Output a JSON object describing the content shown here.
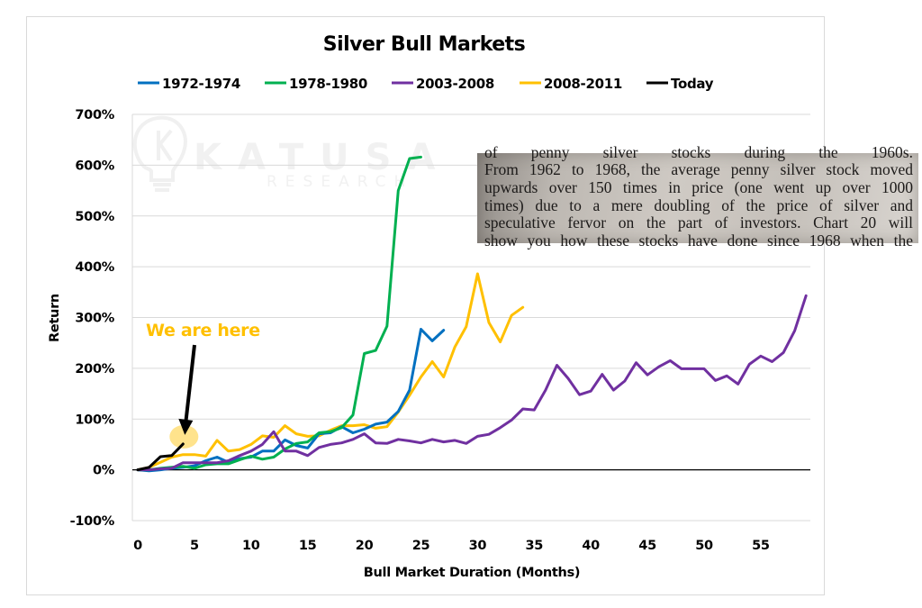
{
  "chart_data": {
    "type": "line",
    "title": "Silver Bull Markets",
    "xlabel": "Bull Market Duration (Months)",
    "ylabel": "Return",
    "xlim": [
      0,
      60
    ],
    "ylim": [
      -100,
      700
    ],
    "x_ticks": [
      0,
      5,
      10,
      15,
      20,
      25,
      30,
      35,
      40,
      45,
      50,
      55
    ],
    "x_tick_labels": [
      "0",
      "5",
      "10",
      "15",
      "20",
      "25",
      "30",
      "35",
      "40",
      "45",
      "50",
      "55"
    ],
    "y_ticks": [
      -100,
      0,
      100,
      200,
      300,
      400,
      500,
      600,
      700
    ],
    "y_tick_labels": [
      "-100%",
      "0%",
      "100%",
      "200%",
      "300%",
      "400%",
      "500%",
      "600%",
      "700%"
    ],
    "grid": "horizontal",
    "legend_position": "top",
    "series": [
      {
        "name": "1972-1974",
        "color": "#0070c0",
        "values": [
          0,
          -2,
          0,
          3,
          5,
          8,
          18,
          25,
          15,
          22,
          25,
          37,
          37,
          59,
          48,
          43,
          71,
          73,
          85,
          73,
          80,
          90,
          94,
          115,
          157,
          277,
          254,
          275
        ]
      },
      {
        "name": "1978-1980",
        "color": "#00b050",
        "values": [
          0,
          0,
          3,
          5,
          7,
          3,
          10,
          12,
          12,
          20,
          27,
          21,
          25,
          41,
          52,
          55,
          73,
          75,
          83,
          108,
          229,
          235,
          283,
          550,
          613,
          616
        ]
      },
      {
        "name": "2003-2008",
        "color": "#7030a0",
        "values": [
          0,
          0,
          2,
          3,
          14,
          14,
          14,
          14,
          18,
          28,
          37,
          50,
          75,
          37,
          37,
          28,
          44,
          50,
          53,
          60,
          71,
          53,
          52,
          60,
          57,
          53,
          60,
          55,
          58,
          52,
          66,
          70,
          83,
          98,
          120,
          118,
          157,
          206,
          180,
          148,
          155,
          188,
          157,
          175,
          211,
          187,
          203,
          215,
          199,
          199,
          199,
          176,
          185,
          169,
          208,
          224,
          213,
          231,
          274,
          343
        ]
      },
      {
        "name": "2008-2011",
        "color": "#ffc000",
        "values": [
          0,
          5,
          15,
          25,
          30,
          30,
          27,
          58,
          37,
          40,
          50,
          67,
          64,
          87,
          71,
          66,
          67,
          78,
          87,
          87,
          89,
          82,
          85,
          114,
          147,
          183,
          213,
          183,
          242,
          282,
          386,
          290,
          252,
          304,
          320
        ]
      },
      {
        "name": "Today",
        "color": "#000000",
        "values": [
          0,
          5,
          26,
          28,
          51
        ]
      }
    ],
    "annotations": [
      {
        "text": "We are here",
        "color": "#ffc000",
        "points_to": {
          "x": 4,
          "y": 51
        },
        "highlight_color": "#ffd966"
      }
    ]
  },
  "watermark": {
    "brand": "KATUSA",
    "sub": "RESEARCH",
    "icon": "lightbulb-k-logo-icon"
  },
  "book_excerpt": {
    "lines": [
      "of penny silver stocks during the 1960s.",
      "From 1962 to 1968, the average penny silver stock moved",
      "upwards over 150 times in price (one went up over 1000",
      "times) due to a mere doubling of the price of silver and",
      "speculative fervor on the part of investors. Chart 20 will",
      "show you how these stocks have done since 1968 when the"
    ]
  }
}
